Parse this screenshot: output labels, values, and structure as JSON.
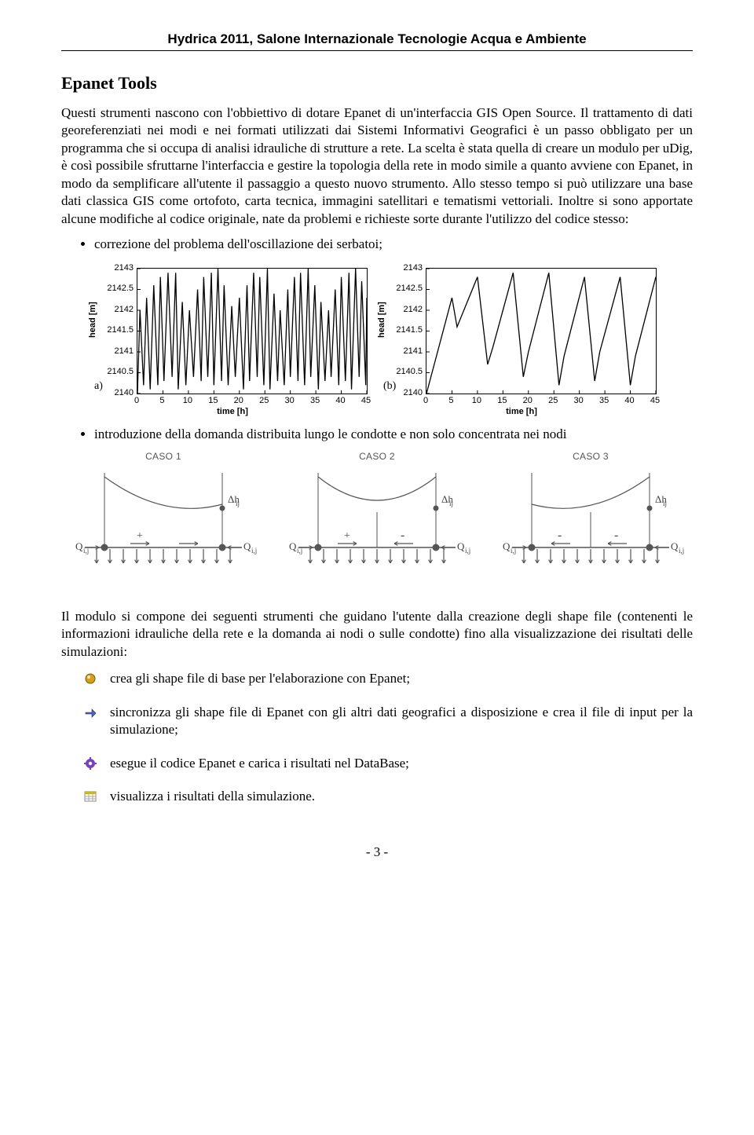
{
  "header": "Hydrica 2011, Salone Internazionale Tecnologie Acqua e Ambiente",
  "section_title": "Epanet Tools",
  "intro_para": "Questi strumenti nascono con l'obbiettivo di dotare Epanet di un'interfaccia GIS Open Source. Il trattamento di dati georeferenziati nei modi e nei formati utilizzati dai Sistemi Informativi Geografici è un passo obbligato per un programma che si occupa di analisi idrauliche di strutture a rete. La scelta è stata quella di creare un modulo per uDig, è così possibile sfruttarne l'interfaccia e gestire la topologia della rete in modo simile a quanto avviene con Epanet, in modo da semplificare all'utente il passaggio a questo nuovo strumento. Allo stesso tempo si può utilizzare una base dati classica GIS come ortofoto, carta tecnica, immagini satellitari e tematismi vettoriali. Inoltre si sono apportate alcune modifiche al codice originale, nate da problemi e richieste sorte durante l'utilizzo del codice stesso:",
  "bullet1": "correzione del problema dell'oscillazione dei serbatoi;",
  "bullet2": "introduzione della domanda distribuita lungo le condotte e non solo concentrata nei nodi",
  "charts": {
    "yticks": [
      "2143",
      "2142.5",
      "2142",
      "2141.5",
      "2141",
      "2140.5",
      "2140"
    ],
    "xticks": [
      "0",
      "5",
      "10",
      "15",
      "20",
      "25",
      "30",
      "35",
      "40",
      "45"
    ],
    "ylabel": "head [m]",
    "xlabel": "time [h]",
    "panel_a": "a)",
    "panel_b": "(b)",
    "line_color": "#000000",
    "a_points": [
      [
        0,
        2140
      ],
      [
        0.5,
        2142
      ],
      [
        1.2,
        2140.2
      ],
      [
        1.8,
        2142.3
      ],
      [
        2.5,
        2140.1
      ],
      [
        3.2,
        2142.6
      ],
      [
        4,
        2140.2
      ],
      [
        4.5,
        2142.8
      ],
      [
        5.2,
        2140.3
      ],
      [
        6,
        2142.9
      ],
      [
        6.8,
        2140.4
      ],
      [
        7.5,
        2142.9
      ],
      [
        8,
        2140.1
      ],
      [
        8.8,
        2142.2
      ],
      [
        9.5,
        2140.2
      ],
      [
        10.2,
        2142
      ],
      [
        11,
        2140.4
      ],
      [
        11.8,
        2142.5
      ],
      [
        12.5,
        2140.3
      ],
      [
        13,
        2142.8
      ],
      [
        13.8,
        2140.4
      ],
      [
        14.5,
        2142.9
      ],
      [
        15,
        2140.2
      ],
      [
        15.8,
        2143
      ],
      [
        16.5,
        2140.3
      ],
      [
        17,
        2142.6
      ],
      [
        17.8,
        2140.2
      ],
      [
        18.5,
        2142.1
      ],
      [
        19.2,
        2140.4
      ],
      [
        20,
        2142.3
      ],
      [
        20.8,
        2140.1
      ],
      [
        21.5,
        2142.6
      ],
      [
        22,
        2140.3
      ],
      [
        22.8,
        2142.9
      ],
      [
        23.5,
        2140.4
      ],
      [
        24,
        2142.8
      ],
      [
        24.8,
        2140.2
      ],
      [
        25.5,
        2143
      ],
      [
        26,
        2140.1
      ],
      [
        26.8,
        2142.4
      ],
      [
        27.5,
        2140.3
      ],
      [
        28,
        2142
      ],
      [
        28.8,
        2140.2
      ],
      [
        29.5,
        2142.5
      ],
      [
        30,
        2140.4
      ],
      [
        30.8,
        2142.8
      ],
      [
        31.5,
        2140.3
      ],
      [
        32,
        2142.9
      ],
      [
        32.8,
        2140.2
      ],
      [
        33.5,
        2143
      ],
      [
        34,
        2140.4
      ],
      [
        34.8,
        2142.6
      ],
      [
        35.5,
        2140.1
      ],
      [
        36,
        2142.2
      ],
      [
        36.8,
        2140.3
      ],
      [
        37.5,
        2142
      ],
      [
        38,
        2140.4
      ],
      [
        38.8,
        2142.5
      ],
      [
        39.5,
        2140.2
      ],
      [
        40,
        2142.8
      ],
      [
        40.8,
        2140.3
      ],
      [
        41.5,
        2142.9
      ],
      [
        42,
        2140.1
      ],
      [
        42.8,
        2143
      ],
      [
        43.5,
        2140.4
      ],
      [
        44,
        2142.7
      ],
      [
        44.8,
        2140.2
      ],
      [
        45,
        2142.3
      ]
    ],
    "b_points": [
      [
        0,
        2140
      ],
      [
        5,
        2142.3
      ],
      [
        6,
        2141.6
      ],
      [
        10,
        2142.8
      ],
      [
        12,
        2140.7
      ],
      [
        13,
        2141.1
      ],
      [
        17,
        2142.9
      ],
      [
        19,
        2140.4
      ],
      [
        20,
        2141
      ],
      [
        24,
        2142.9
      ],
      [
        26,
        2140.2
      ],
      [
        27,
        2140.9
      ],
      [
        31,
        2142.8
      ],
      [
        33,
        2140.3
      ],
      [
        34,
        2141
      ],
      [
        38,
        2142.8
      ],
      [
        40,
        2140.2
      ],
      [
        41,
        2140.9
      ],
      [
        45,
        2142.8
      ]
    ],
    "ymin": 2140,
    "ymax": 2143,
    "xmin": 0,
    "xmax": 45
  },
  "cases": {
    "titles": [
      "CASO 1",
      "CASO 2",
      "CASO 3"
    ],
    "dh": "Δh",
    "dh_sub": "ij",
    "q_left": "Q",
    "q_sub_left": "i,j",
    "q_right": "Q",
    "q_sub_right": "i,j",
    "plus": "+",
    "minus": "-",
    "colors": {
      "line": "#555555",
      "text": "#444444"
    }
  },
  "module_para": "Il modulo si compone dei seguenti strumenti che guidano l'utente dalla creazione degli shape file (contenenti le informazioni idrauliche della rete e la domanda ai nodi o sulle condotte) fino alla visualizzazione dei risultati delle simulazioni:",
  "icon_items": [
    {
      "text": "crea gli shape file di base per l'elaborazione con Epanet;",
      "icon_color": "#d4a017",
      "icon_shape": "circle"
    },
    {
      "text": "sincronizza gli shape file di Epanet con gli altri dati geografici a disposizione e crea il file di input per la simulazione;",
      "icon_color": "#4a66d4",
      "icon_shape": "arrow"
    },
    {
      "text": "esegue il codice Epanet e carica i risultati nel DataBase;",
      "icon_color": "#7a3fbf",
      "icon_shape": "gear"
    },
    {
      "text": "visualizza i risultati della simulazione.",
      "icon_color": "#c4b82e",
      "icon_shape": "table"
    }
  ],
  "page_number": "- 3 -"
}
